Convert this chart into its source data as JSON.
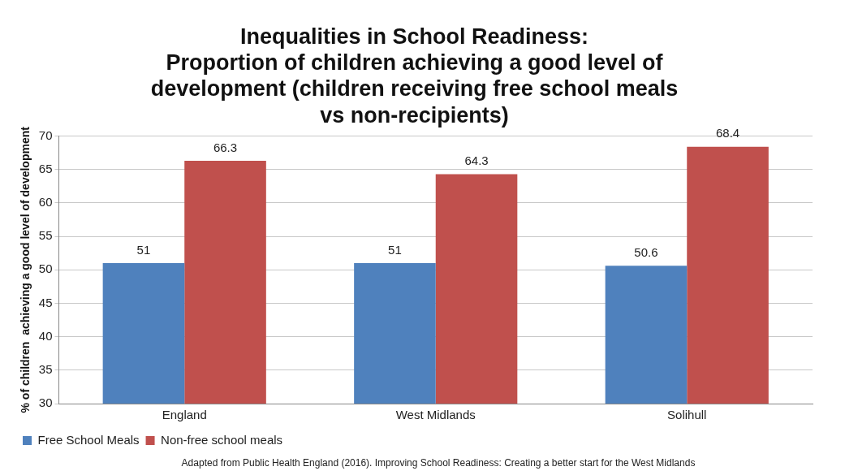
{
  "chart_data": {
    "type": "bar",
    "title": "Inequalities in School Readiness:\nProportion of children achieving a good level of\ndevelopment (children receiving free school meals\nvs non-recipients)",
    "ylabel": "% of children  achieving a good level of development",
    "categories": [
      "England",
      "West Midlands",
      "Solihull"
    ],
    "series": [
      {
        "name": "Free School Meals",
        "color": "#4f81bd",
        "values": [
          51,
          51,
          50.6
        ]
      },
      {
        "name": "Non-free school meals",
        "color": "#c0504d",
        "values": [
          66.3,
          64.3,
          68.4
        ]
      }
    ],
    "ylim": [
      30,
      70
    ],
    "yticks": [
      30,
      35,
      40,
      45,
      50,
      55,
      60,
      65,
      70
    ],
    "grid": "y",
    "legend": "bottom left",
    "data_labels": true,
    "annotations": [
      "Adapted from Public Health England (2016). Improving School Readiness: Creating a better start for the West Midlands"
    ]
  }
}
